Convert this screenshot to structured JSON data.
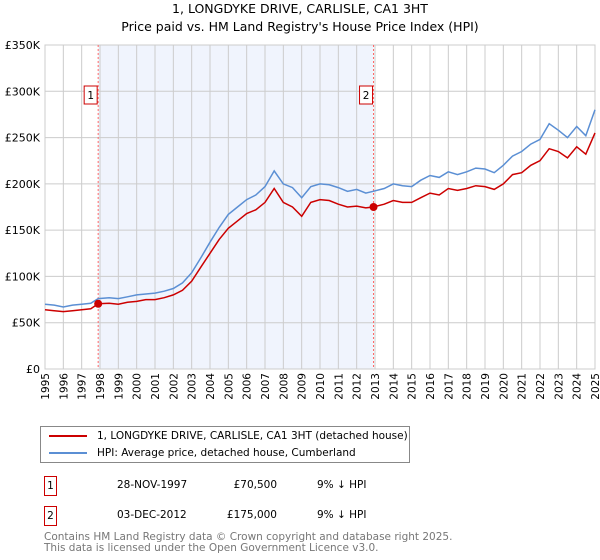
{
  "title": "1, LONGDYKE DRIVE, CARLISLE, CA1 3HT",
  "subtitle": "Price paid vs. HM Land Registry's House Price Index (HPI)",
  "chart_data": {
    "type": "line",
    "title": "1, LONGDYKE DRIVE, CARLISLE, CA1 3HT",
    "xlim": [
      1995,
      2025
    ],
    "ylim": [
      0,
      350000
    ],
    "yticks": [
      {
        "v": 0,
        "label": "£0"
      },
      {
        "v": 50000,
        "label": "£50K"
      },
      {
        "v": 100000,
        "label": "£100K"
      },
      {
        "v": 150000,
        "label": "£150K"
      },
      {
        "v": 200000,
        "label": "£200K"
      },
      {
        "v": 250000,
        "label": "£250K"
      },
      {
        "v": 300000,
        "label": "£300K"
      },
      {
        "v": 350000,
        "label": "£350K"
      }
    ],
    "xticks": [
      "1995",
      "1996",
      "1997",
      "1998",
      "1999",
      "2000",
      "2001",
      "2002",
      "2003",
      "2004",
      "2005",
      "2006",
      "2007",
      "2008",
      "2009",
      "2010",
      "2011",
      "2012",
      "2013",
      "2014",
      "2015",
      "2016",
      "2017",
      "2018",
      "2019",
      "2020",
      "2021",
      "2022",
      "2023",
      "2024",
      "2025"
    ],
    "grid": true,
    "series": [
      {
        "name": "1, LONGDYKE DRIVE, CARLISLE, CA1 3HT (detached house)",
        "color": "#cc0000",
        "x": [
          1995,
          1995.5,
          1996,
          1996.5,
          1997,
          1997.5,
          1997.9,
          1998.5,
          1999,
          1999.5,
          2000,
          2000.5,
          2001,
          2001.5,
          2002,
          2002.5,
          2003,
          2003.5,
          2004,
          2004.5,
          2005,
          2005.5,
          2006,
          2006.5,
          2007,
          2007.5,
          2008,
          2008.5,
          2009,
          2009.5,
          2010,
          2010.5,
          2011,
          2011.5,
          2012,
          2012.5,
          2012.9,
          2013.5,
          2014,
          2014.5,
          2015,
          2015.5,
          2016,
          2016.5,
          2017,
          2017.5,
          2018,
          2018.5,
          2019,
          2019.5,
          2020,
          2020.5,
          2021,
          2021.5,
          2022,
          2022.5,
          2023,
          2023.5,
          2024,
          2024.5,
          2025
        ],
        "y": [
          64000,
          63000,
          62000,
          63000,
          64000,
          65000,
          70500,
          71000,
          70000,
          72000,
          73000,
          75000,
          75000,
          77000,
          80000,
          85000,
          95000,
          110000,
          125000,
          140000,
          152000,
          160000,
          168000,
          172000,
          180000,
          195000,
          180000,
          175000,
          165000,
          180000,
          183000,
          182000,
          178000,
          175000,
          176000,
          174000,
          175000,
          178000,
          182000,
          180000,
          180000,
          185000,
          190000,
          188000,
          195000,
          193000,
          195000,
          198000,
          197000,
          194000,
          200000,
          210000,
          212000,
          220000,
          225000,
          238000,
          235000,
          228000,
          240000,
          232000,
          255000
        ]
      },
      {
        "name": "HPI: Average price, detached house, Cumberland",
        "color": "#5b8fd4",
        "x": [
          1995,
          1995.5,
          1996,
          1996.5,
          1997,
          1997.5,
          1997.9,
          1998.5,
          1999,
          1999.5,
          2000,
          2000.5,
          2001,
          2001.5,
          2002,
          2002.5,
          2003,
          2003.5,
          2004,
          2004.5,
          2005,
          2005.5,
          2006,
          2006.5,
          2007,
          2007.5,
          2008,
          2008.5,
          2009,
          2009.5,
          2010,
          2010.5,
          2011,
          2011.5,
          2012,
          2012.5,
          2012.9,
          2013.5,
          2014,
          2014.5,
          2015,
          2015.5,
          2016,
          2016.5,
          2017,
          2017.5,
          2018,
          2018.5,
          2019,
          2019.5,
          2020,
          2020.5,
          2021,
          2021.5,
          2022,
          2022.5,
          2023,
          2023.5,
          2024,
          2024.5,
          2025
        ],
        "y": [
          70000,
          69000,
          67000,
          69000,
          70000,
          71000,
          76000,
          77000,
          76000,
          78000,
          80000,
          81000,
          82000,
          84000,
          87000,
          93000,
          104000,
          120000,
          137000,
          153000,
          167000,
          175000,
          183000,
          188000,
          197000,
          214000,
          200000,
          196000,
          185000,
          197000,
          200000,
          199000,
          196000,
          192000,
          194000,
          190000,
          192000,
          195000,
          200000,
          198000,
          197000,
          204000,
          209000,
          207000,
          213000,
          210000,
          213000,
          217000,
          216000,
          212000,
          220000,
          230000,
          235000,
          243000,
          248000,
          265000,
          258000,
          250000,
          262000,
          252000,
          280000
        ]
      }
    ],
    "markers": [
      {
        "n": "1",
        "x": 1997.9,
        "y": 70500
      },
      {
        "n": "2",
        "x": 2012.92,
        "y": 175000
      }
    ]
  },
  "legend": {
    "property": "1, LONGDYKE DRIVE, CARLISLE, CA1 3HT (detached house)",
    "hpi": "HPI: Average price, detached house, Cumberland"
  },
  "sales": [
    {
      "n": "1",
      "date": "28-NOV-1997",
      "price": "£70,500",
      "hpi": "9% ↓ HPI"
    },
    {
      "n": "2",
      "date": "03-DEC-2012",
      "price": "£175,000",
      "hpi": "9% ↓ HPI"
    }
  ],
  "footer": {
    "line1": "Contains HM Land Registry data © Crown copyright and database right 2025.",
    "line2": "This data is licensed under the Open Government Licence v3.0."
  }
}
